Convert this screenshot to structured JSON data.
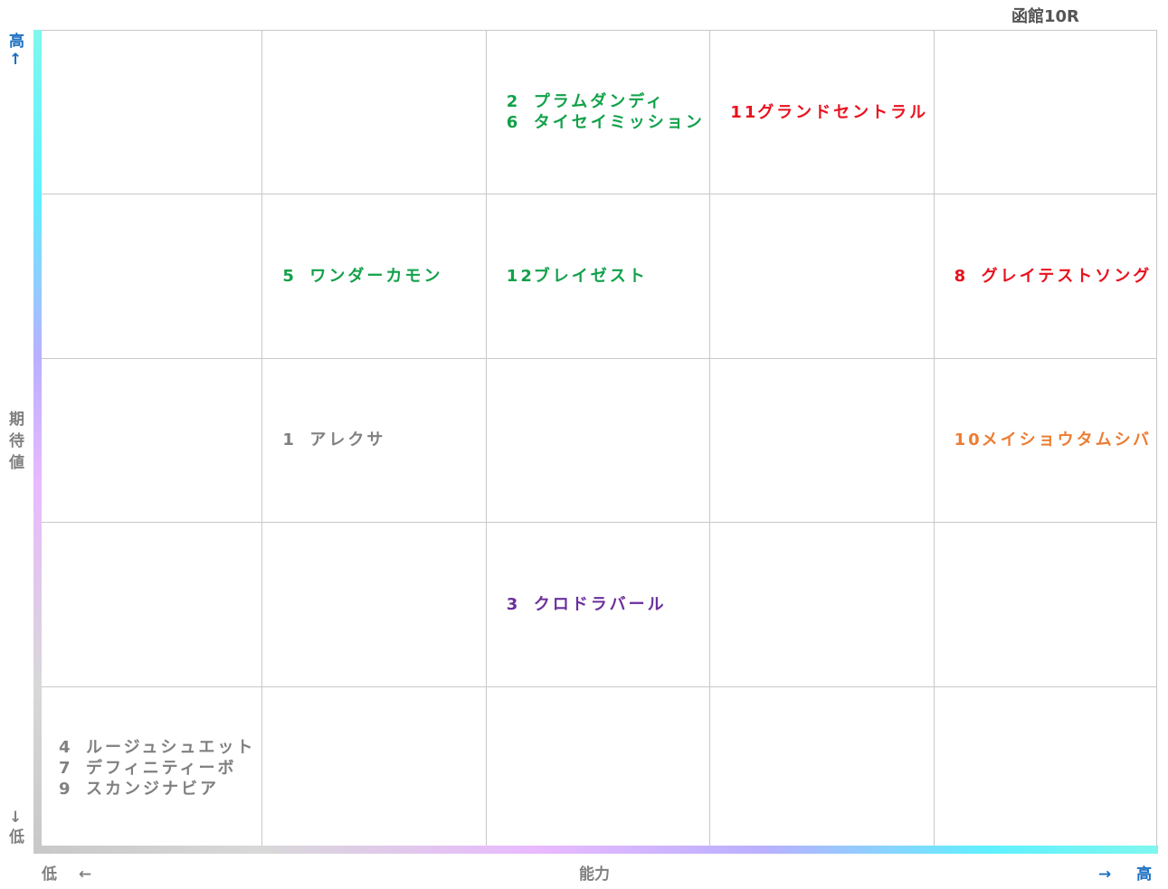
{
  "header": {
    "title": "函館10R"
  },
  "y_axis": {
    "high": "高↑",
    "label": "期待値",
    "low": "↓低"
  },
  "x_axis": {
    "low": "低 ←",
    "label": "能力",
    "high": "→ 高"
  },
  "grid": {
    "rows": [
      [
        [],
        [],
        [
          {
            "number": "2",
            "name": "プラムダンディ",
            "color": "#12a14a"
          },
          {
            "number": "6",
            "name": "タイセイミッション",
            "color": "#12a14a"
          }
        ],
        [
          {
            "number": "11",
            "name": "グランドセントラル",
            "color": "#e8121e"
          }
        ],
        []
      ],
      [
        [],
        [
          {
            "number": "5",
            "name": "ワンダーカモン",
            "color": "#12a14a"
          }
        ],
        [
          {
            "number": "12",
            "name": "ブレイゼスト",
            "color": "#12a14a"
          }
        ],
        [],
        [
          {
            "number": "8",
            "name": "グレイテストソング",
            "color": "#e8121e"
          }
        ]
      ],
      [
        [],
        [
          {
            "number": "1",
            "name": "アレクサ",
            "color": "#808080"
          }
        ],
        [],
        [],
        [
          {
            "number": "10",
            "name": "メイショウタムシバ",
            "color": "#ec7d32"
          }
        ]
      ],
      [
        [],
        [],
        [
          {
            "number": "3",
            "name": "クロドラバール",
            "color": "#6b2f9e"
          }
        ],
        [],
        []
      ],
      [
        [
          {
            "number": "4",
            "name": "ルージュシュエット",
            "color": "#808080"
          },
          {
            "number": "7",
            "name": "デフィニティーボ",
            "color": "#808080"
          },
          {
            "number": "9",
            "name": "スカンジナビア",
            "color": "#808080"
          }
        ],
        [],
        [],
        [],
        []
      ]
    ]
  }
}
